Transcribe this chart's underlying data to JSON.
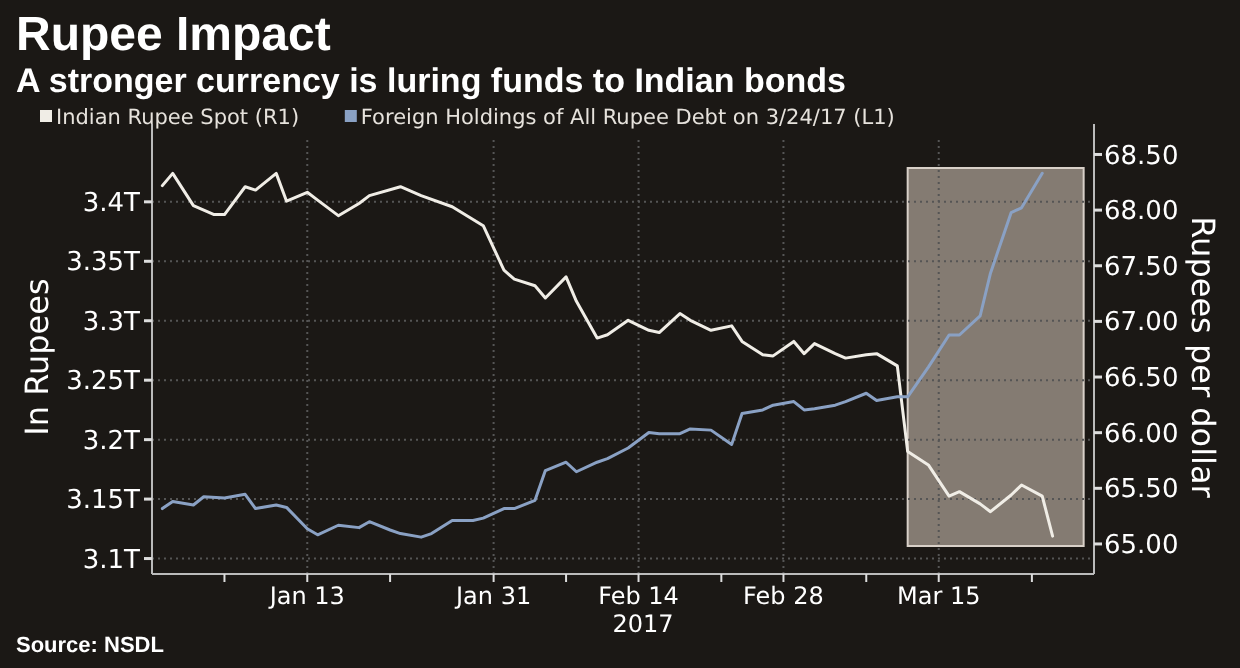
{
  "chart_data": {
    "type": "line",
    "title": "Rupee Impact",
    "subtitle": "A stronger currency is luring funds to Indian bonds",
    "ylabel": "In Rupees",
    "y2label": "Rupees per dollar",
    "xlim": [
      "2016-12-29",
      "2017-03-30"
    ],
    "xticks": [
      {
        "value": "2017-01-05",
        "label": null
      },
      {
        "value": "2017-01-13",
        "label": "Jan 13"
      },
      {
        "value": "2017-01-21",
        "label": null
      },
      {
        "value": "2017-01-31",
        "label": "Jan 31"
      },
      {
        "value": "2017-02-07",
        "label": null
      },
      {
        "value": "2017-02-14",
        "label": "Feb 14"
      },
      {
        "value": "2017-02-22",
        "label": null
      },
      {
        "value": "2017-02-28",
        "label": "Feb 28"
      },
      {
        "value": "2017-03-08",
        "label": null
      },
      {
        "value": "2017-03-15",
        "label": "Mar 15"
      },
      {
        "value": "2017-03-24",
        "label": null
      }
    ],
    "ylim": [
      3.087,
      3.452
    ],
    "yticks": [
      {
        "value": 3.1,
        "label": "3.1T"
      },
      {
        "value": 3.15,
        "label": "3.15T"
      },
      {
        "value": 3.2,
        "label": "3.2T"
      },
      {
        "value": 3.25,
        "label": "3.25T"
      },
      {
        "value": 3.3,
        "label": "3.3T"
      },
      {
        "value": 3.35,
        "label": "3.35T"
      },
      {
        "value": 3.4,
        "label": "3.4T"
      }
    ],
    "y2lim": [
      64.73,
      68.63
    ],
    "y2ticks": [
      {
        "value": 65,
        "label": "65.00"
      },
      {
        "value": 65.5,
        "label": "65.50"
      },
      {
        "value": 66,
        "label": "66.00"
      },
      {
        "value": 66.5,
        "label": "66.50"
      },
      {
        "value": 67,
        "label": "67.00"
      },
      {
        "value": 67.5,
        "label": "67.50"
      },
      {
        "value": 68,
        "label": "68.00"
      },
      {
        "value": 68.5,
        "label": "68.50"
      }
    ],
    "grid": true,
    "legend": "top left",
    "line_style": "solid",
    "series": [
      {
        "name": "Indian Rupee Spot (R1)",
        "color": "#f0ede6",
        "axis": "y2",
        "x": [
          "2016-12-30",
          "2016-12-31",
          "2017-01-02",
          "2017-01-04",
          "2017-01-05",
          "2017-01-07",
          "2017-01-08",
          "2017-01-10",
          "2017-01-11",
          "2017-01-13",
          "2017-01-14",
          "2017-01-16",
          "2017-01-18",
          "2017-01-19",
          "2017-01-22",
          "2017-01-24",
          "2017-01-27",
          "2017-01-30",
          "2017-02-01",
          "2017-02-02",
          "2017-02-04",
          "2017-02-05",
          "2017-02-07",
          "2017-02-08",
          "2017-02-10",
          "2017-02-11",
          "2017-02-13",
          "2017-02-15",
          "2017-02-16",
          "2017-02-18",
          "2017-02-19",
          "2017-02-21",
          "2017-02-23",
          "2017-02-24",
          "2017-02-26",
          "2017-02-27",
          "2017-03-01",
          "2017-03-02",
          "2017-03-03",
          "2017-03-05",
          "2017-03-06",
          "2017-03-08",
          "2017-03-09",
          "2017-03-11",
          "2017-03-12",
          "2017-03-14",
          "2017-03-16",
          "2017-03-17",
          "2017-03-19",
          "2017-03-20",
          "2017-03-22",
          "2017-03-23",
          "2017-03-25",
          "2017-03-26"
        ],
        "values": [
          68.22,
          68.33,
          68.04,
          67.96,
          67.96,
          68.21,
          68.18,
          68.33,
          68.08,
          68.16,
          68.09,
          67.95,
          68.06,
          68.13,
          68.21,
          68.13,
          68.03,
          67.86,
          67.46,
          67.38,
          67.32,
          67.21,
          67.4,
          67.18,
          66.85,
          66.88,
          67.01,
          66.92,
          66.9,
          67.07,
          67.01,
          66.92,
          66.96,
          66.82,
          66.7,
          66.69,
          66.82,
          66.71,
          66.8,
          66.71,
          66.67,
          66.7,
          66.71,
          66.6,
          65.83,
          65.71,
          65.43,
          65.47,
          65.36,
          65.29,
          65.44,
          65.53,
          65.43,
          65.07
        ]
      },
      {
        "name": "Foreign Holdings of All Rupee Debt on 3/24/17 (L1)",
        "color": "#8aa1c4",
        "x": [
          "2016-12-30",
          "2016-12-31",
          "2017-01-02",
          "2017-01-03",
          "2017-01-05",
          "2017-01-07",
          "2017-01-08",
          "2017-01-10",
          "2017-01-11",
          "2017-01-13",
          "2017-01-14",
          "2017-01-16",
          "2017-01-18",
          "2017-01-19",
          "2017-01-21",
          "2017-01-22",
          "2017-01-24",
          "2017-01-25",
          "2017-01-27",
          "2017-01-29",
          "2017-01-30",
          "2017-02-01",
          "2017-02-02",
          "2017-02-04",
          "2017-02-05",
          "2017-02-07",
          "2017-02-08",
          "2017-02-10",
          "2017-02-11",
          "2017-02-13",
          "2017-02-15",
          "2017-02-16",
          "2017-02-18",
          "2017-02-19",
          "2017-02-21",
          "2017-02-23",
          "2017-02-24",
          "2017-02-26",
          "2017-02-27",
          "2017-03-01",
          "2017-03-02",
          "2017-03-03",
          "2017-03-05",
          "2017-03-06",
          "2017-03-08",
          "2017-03-09",
          "2017-03-11",
          "2017-03-12",
          "2017-03-14",
          "2017-03-16",
          "2017-03-17",
          "2017-03-19",
          "2017-03-20",
          "2017-03-22",
          "2017-03-23",
          "2017-03-25"
        ],
        "values": [
          3.142,
          3.148,
          3.145,
          3.152,
          3.151,
          3.154,
          3.142,
          3.145,
          3.143,
          3.125,
          3.12,
          3.128,
          3.126,
          3.131,
          3.124,
          3.121,
          3.118,
          3.121,
          3.132,
          3.132,
          3.134,
          3.142,
          3.142,
          3.149,
          3.174,
          3.181,
          3.173,
          3.181,
          3.184,
          3.193,
          3.206,
          3.205,
          3.205,
          3.209,
          3.208,
          3.196,
          3.222,
          3.225,
          3.229,
          3.232,
          3.225,
          3.226,
          3.229,
          3.232,
          3.239,
          3.233,
          3.236,
          3.236,
          3.261,
          3.288,
          3.288,
          3.304,
          3.34,
          3.391,
          3.395,
          3.424
        ]
      }
    ],
    "bands": [
      {
        "axis": "x",
        "from": "2017-03-12",
        "to": "2017-03-29",
        "color": "#a89c92"
      }
    ],
    "xlabel": "2017",
    "annotations": [
      "Source: NSDL"
    ]
  }
}
